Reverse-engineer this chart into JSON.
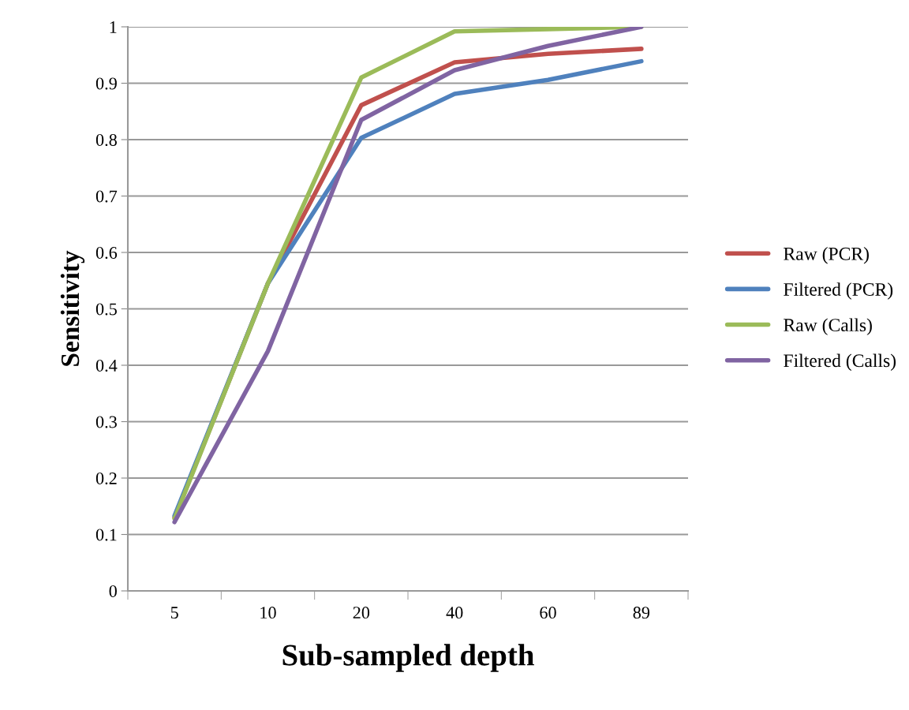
{
  "chart_data": {
    "type": "line",
    "xlabel": "Sub-sampled depth",
    "ylabel": "Sensitivity",
    "categories": [
      "5",
      "10",
      "20",
      "40",
      "60",
      "89"
    ],
    "series": [
      {
        "name": "Raw (PCR)",
        "color": "#c0504d",
        "values": [
          0.13,
          0.545,
          0.861,
          0.937,
          0.952,
          0.961
        ]
      },
      {
        "name": "Filtered (PCR)",
        "color": "#4f81bd",
        "values": [
          0.133,
          0.545,
          0.803,
          0.881,
          0.906,
          0.939
        ]
      },
      {
        "name": "Raw (Calls)",
        "color": "#9bbb59",
        "values": [
          0.128,
          0.545,
          0.91,
          0.992,
          0.996,
          1.0
        ]
      },
      {
        "name": "Filtered (Calls)",
        "color": "#8064a2",
        "values": [
          0.122,
          0.425,
          0.835,
          0.923,
          0.966,
          1.0
        ]
      }
    ],
    "ylim": [
      0,
      1
    ],
    "yticks": [
      0,
      0.1,
      0.2,
      0.3,
      0.4,
      0.5,
      0.6,
      0.7,
      0.8,
      0.9,
      1
    ],
    "grid": "y",
    "legend": "right",
    "marker": "none",
    "line_style": "solid"
  }
}
